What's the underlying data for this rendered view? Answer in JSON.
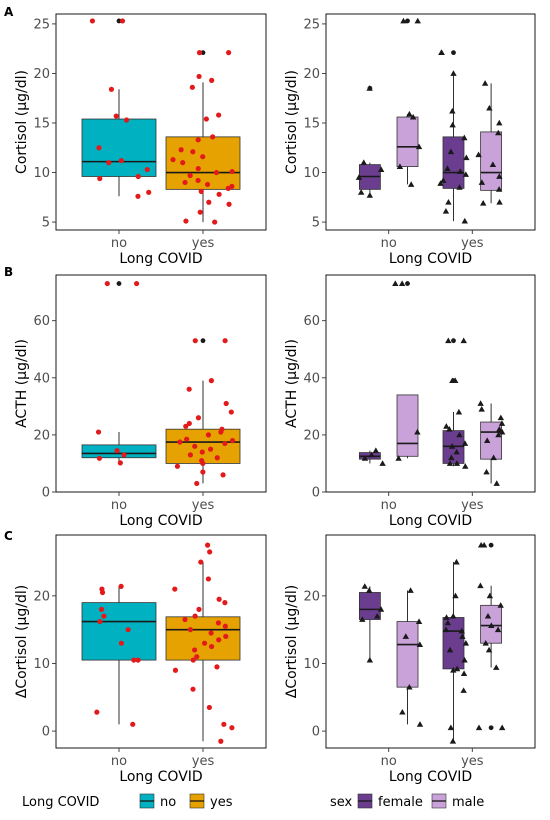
{
  "colors": {
    "no": "#00B2C1",
    "yes": "#E5A200",
    "female": "#6A3D8F",
    "male": "#C9A2DA",
    "points": "#E31A1C",
    "black": "#1A1A1A"
  },
  "chart_data": [
    {
      "type": "box",
      "panel": "A",
      "subtype": "by_group",
      "xlabel": "Long COVID",
      "ylabel": "Cortisol (µg/dl)",
      "categories": [
        "no",
        "yes"
      ],
      "ylim": [
        4.2,
        26
      ],
      "yticks": [
        5,
        10,
        15,
        20,
        25
      ],
      "boxes": [
        {
          "group": "no",
          "q1": 9.6,
          "median": 11.1,
          "q3": 15.4,
          "whisker_low": 7.6,
          "whisker_high": 18.4,
          "outliers": [
            25.3
          ]
        },
        {
          "group": "yes",
          "q1": 8.3,
          "median": 10.0,
          "q3": 13.6,
          "whisker_low": 5.0,
          "whisker_high": 19.1,
          "outliers": [
            22.1
          ]
        }
      ],
      "points": [
        {
          "x": "no",
          "y": [
            25.3,
            25.3,
            18.4,
            15.7,
            15.3,
            12.5,
            11.0,
            11.2,
            10.3,
            9.6,
            9.4,
            8.0,
            7.6
          ]
        },
        {
          "x": "yes",
          "y": [
            22.1,
            22.1,
            19.7,
            19.3,
            18.6,
            15.8,
            15.4,
            13.6,
            13.3,
            12.3,
            12.1,
            11.6,
            11.3,
            11.0,
            10.4,
            10.1,
            10.0,
            9.7,
            9.2,
            9.0,
            8.8,
            8.6,
            8.4,
            8.1,
            7.8,
            7.0,
            6.8,
            6.0,
            5.1,
            5.0
          ]
        }
      ]
    },
    {
      "type": "box",
      "panel": "A",
      "subtype": "by_group_sex",
      "xlabel": "Long COVID",
      "ylabel": "Cortisol (µg/dl)",
      "categories": [
        "no",
        "yes"
      ],
      "ylim": [
        4.2,
        26
      ],
      "yticks": [
        5,
        10,
        15,
        20,
        25
      ],
      "boxes": [
        {
          "group": "no",
          "sex": "female",
          "q1": 8.3,
          "median": 9.6,
          "q3": 10.8,
          "whisker_low": 7.6,
          "whisker_high": 11.0,
          "outliers": [
            18.5
          ]
        },
        {
          "group": "no",
          "sex": "male",
          "q1": 10.6,
          "median": 12.6,
          "q3": 15.6,
          "whisker_low": 8.8,
          "whisker_high": 15.9,
          "outliers": [
            25.3
          ]
        },
        {
          "group": "yes",
          "sex": "female",
          "q1": 8.4,
          "median": 10.0,
          "q3": 13.6,
          "whisker_low": 5.1,
          "whisker_high": 20.0,
          "outliers": [
            22.1
          ]
        },
        {
          "group": "yes",
          "sex": "male",
          "q1": 8.2,
          "median": 10.0,
          "q3": 14.1,
          "whisker_low": 6.9,
          "whisker_high": 19.0,
          "outliers": []
        }
      ],
      "points": [
        {
          "x": "no",
          "sex": "female",
          "y": [
            18.5,
            11.0,
            10.3,
            9.5,
            8.0,
            7.7
          ]
        },
        {
          "x": "no",
          "sex": "male",
          "y": [
            25.3,
            25.3,
            15.9,
            15.6,
            12.6,
            10.6,
            8.8
          ]
        },
        {
          "x": "yes",
          "sex": "female",
          "y": [
            22.1,
            22.1,
            20.0,
            16.2,
            14.8,
            13.5,
            12.1,
            11.5,
            10.4,
            10.1,
            9.8,
            9.2,
            8.9,
            8.5,
            7.0,
            6.1,
            5.1
          ]
        },
        {
          "x": "yes",
          "sex": "male",
          "y": [
            19.0,
            16.5,
            15.0,
            14.0,
            11.8,
            10.8,
            9.6,
            9.0,
            8.3,
            7.0,
            6.9
          ]
        }
      ]
    },
    {
      "type": "box",
      "panel": "B",
      "subtype": "by_group",
      "xlabel": "Long COVID",
      "ylabel": "ACTH (µg/dl)",
      "categories": [
        "no",
        "yes"
      ],
      "ylim": [
        0,
        76
      ],
      "yticks": [
        0,
        20,
        40,
        60
      ],
      "boxes": [
        {
          "group": "no",
          "q1": 12.0,
          "median": 13.5,
          "q3": 16.5,
          "whisker_low": 10.0,
          "whisker_high": 21.0,
          "outliers": [
            73.0
          ]
        },
        {
          "group": "yes",
          "q1": 10.0,
          "median": 17.5,
          "q3": 22.0,
          "whisker_low": 3.0,
          "whisker_high": 39.0,
          "outliers": [
            53.0
          ]
        }
      ],
      "points": [
        {
          "x": "no",
          "y": [
            73.0,
            73.0,
            21.0,
            14.5,
            13.0,
            11.8,
            10.2
          ]
        },
        {
          "x": "yes",
          "y": [
            53.0,
            53.0,
            39.0,
            36.0,
            31.0,
            28.0,
            26.0,
            24.0,
            23.0,
            22.0,
            21.0,
            20.0,
            18.5,
            18.0,
            17.5,
            17.0,
            16.0,
            15.0,
            14.0,
            13.0,
            12.0,
            11.0,
            10.0,
            9.0,
            7.0,
            6.0,
            3.0
          ]
        }
      ]
    },
    {
      "type": "box",
      "panel": "B",
      "subtype": "by_group_sex",
      "xlabel": "Long COVID",
      "ylabel": "ACTH (µg/dl)",
      "categories": [
        "no",
        "yes"
      ],
      "ylim": [
        0,
        76
      ],
      "yticks": [
        0,
        20,
        40,
        60
      ],
      "boxes": [
        {
          "group": "no",
          "sex": "female",
          "q1": 11.5,
          "median": 12.5,
          "q3": 13.8,
          "whisker_low": 10.0,
          "whisker_high": 14.5,
          "outliers": []
        },
        {
          "group": "no",
          "sex": "male",
          "q1": 12.5,
          "median": 17.0,
          "q3": 34.0,
          "whisker_low": 11.8,
          "whisker_high": 34.0,
          "outliers": [
            73.0
          ]
        },
        {
          "group": "yes",
          "sex": "female",
          "q1": 10.0,
          "median": 16.0,
          "q3": 21.5,
          "whisker_low": 9.0,
          "whisker_high": 28.0,
          "outliers": [
            53.0,
            39.0
          ]
        },
        {
          "group": "yes",
          "sex": "male",
          "q1": 11.5,
          "median": 21.0,
          "q3": 24.5,
          "whisker_low": 3.0,
          "whisker_high": 31.0,
          "outliers": []
        }
      ],
      "points": [
        {
          "x": "no",
          "sex": "female",
          "y": [
            14.5,
            13.0,
            11.8,
            10.0
          ]
        },
        {
          "x": "no",
          "sex": "male",
          "y": [
            73.0,
            73.0,
            21.0,
            11.8
          ]
        },
        {
          "x": "yes",
          "sex": "female",
          "y": [
            53.0,
            53.0,
            39.0,
            39.0,
            28.0,
            23.0,
            22.0,
            20.0,
            17.0,
            16.0,
            14.0,
            12.0,
            10.0,
            10.0,
            9.0
          ]
        },
        {
          "x": "yes",
          "sex": "male",
          "y": [
            31.0,
            29.0,
            26.0,
            24.0,
            22.0,
            21.0,
            20.0,
            18.0,
            12.0,
            7.0,
            3.0
          ]
        }
      ]
    },
    {
      "type": "box",
      "panel": "C",
      "subtype": "by_group",
      "xlabel": "Long COVID",
      "ylabel": "ΔCortisol (µg/dl)",
      "categories": [
        "no",
        "yes"
      ],
      "ylim": [
        -2.5,
        29
      ],
      "yticks": [
        0,
        10,
        20
      ],
      "boxes": [
        {
          "group": "no",
          "q1": 10.5,
          "median": 16.2,
          "q3": 19.0,
          "whisker_low": 1.0,
          "whisker_high": 21.4,
          "outliers": []
        },
        {
          "group": "yes",
          "q1": 10.5,
          "median": 15.0,
          "q3": 16.9,
          "whisker_low": -1.5,
          "whisker_high": 25.0,
          "outliers": []
        }
      ],
      "points": [
        {
          "x": "no",
          "y": [
            21.4,
            21.0,
            20.5,
            18.0,
            17.0,
            16.2,
            15.0,
            13.0,
            10.5,
            10.5,
            2.8,
            1.0
          ]
        },
        {
          "x": "yes",
          "y": [
            27.5,
            26.5,
            25.0,
            22.5,
            21.0,
            19.5,
            19.0,
            18.0,
            17.0,
            16.5,
            16.0,
            15.5,
            15.0,
            14.5,
            14.0,
            13.5,
            13.0,
            12.5,
            12.0,
            11.0,
            10.5,
            9.5,
            9.0,
            6.2,
            3.5,
            1.0,
            0.5,
            -1.5
          ]
        }
      ]
    },
    {
      "type": "box",
      "panel": "C",
      "subtype": "by_group_sex",
      "xlabel": "Long COVID",
      "ylabel": "ΔCortisol (µg/dl)",
      "categories": [
        "no",
        "yes"
      ],
      "ylim": [
        -2.5,
        29
      ],
      "yticks": [
        0,
        10,
        20
      ],
      "boxes": [
        {
          "group": "no",
          "sex": "female",
          "q1": 16.5,
          "median": 18.0,
          "q3": 20.5,
          "whisker_low": 10.5,
          "whisker_high": 21.4,
          "outliers": []
        },
        {
          "group": "no",
          "sex": "male",
          "q1": 6.5,
          "median": 12.8,
          "q3": 16.2,
          "whisker_low": 1.0,
          "whisker_high": 20.8,
          "outliers": []
        },
        {
          "group": "yes",
          "sex": "female",
          "q1": 9.2,
          "median": 14.8,
          "q3": 16.8,
          "whisker_low": -1.5,
          "whisker_high": 25.0,
          "outliers": []
        },
        {
          "group": "yes",
          "sex": "male",
          "q1": 13.0,
          "median": 15.6,
          "q3": 18.6,
          "whisker_low": 9.4,
          "whisker_high": 21.5,
          "outliers": [
            27.5,
            0.5
          ]
        }
      ],
      "points": [
        {
          "x": "no",
          "sex": "female",
          "y": [
            21.4,
            20.8,
            18.0,
            17.0,
            16.5,
            10.5
          ]
        },
        {
          "x": "no",
          "sex": "male",
          "y": [
            20.8,
            16.2,
            14.0,
            12.8,
            6.5,
            2.8,
            1.0
          ]
        },
        {
          "x": "yes",
          "sex": "female",
          "y": [
            25.0,
            20.0,
            17.0,
            16.8,
            16.0,
            15.0,
            14.8,
            14.0,
            13.0,
            12.0,
            10.5,
            9.2,
            9.0,
            8.5,
            6.0,
            0.5,
            -1.5
          ]
        },
        {
          "x": "yes",
          "sex": "male",
          "y": [
            27.5,
            27.5,
            21.5,
            20.0,
            18.6,
            17.0,
            15.6,
            15.0,
            13.0,
            12.0,
            9.4,
            0.5,
            0.5
          ]
        }
      ]
    }
  ],
  "panel_labels": [
    "A",
    "B",
    "C"
  ],
  "legend_left": {
    "title": "Long COVID",
    "items": [
      {
        "key": "no",
        "label": "no"
      },
      {
        "key": "yes",
        "label": "yes"
      }
    ]
  },
  "legend_right": {
    "title": "sex",
    "items": [
      {
        "key": "female",
        "label": "female"
      },
      {
        "key": "male",
        "label": "male"
      }
    ]
  }
}
